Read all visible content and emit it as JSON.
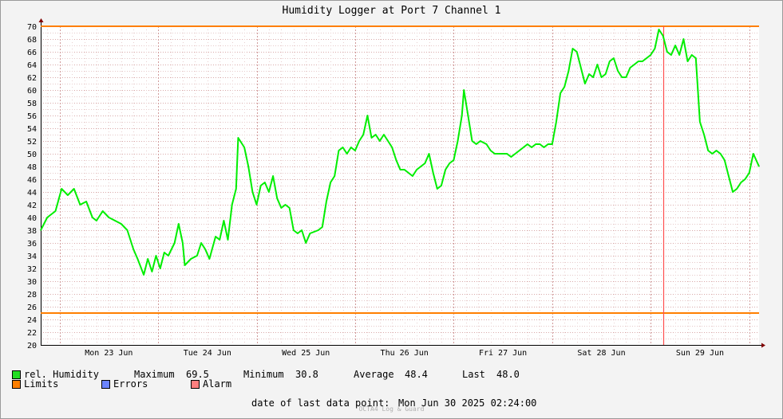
{
  "chart_data": {
    "type": "line",
    "title": "Humidity Logger at Port 7 Channel 1",
    "ylim": [
      20,
      70
    ],
    "y_ticks": [
      20,
      22,
      24,
      26,
      28,
      30,
      32,
      34,
      36,
      38,
      40,
      42,
      44,
      46,
      48,
      50,
      52,
      54,
      56,
      58,
      60,
      62,
      64,
      66,
      68,
      70
    ],
    "x_range": [
      "2025-06-22 19:24",
      "2025-06-30 02:24"
    ],
    "x_labels": [
      {
        "label": "Mon 23 Jun",
        "center": "2025-06-23 12:00"
      },
      {
        "label": "Tue 24 Jun",
        "center": "2025-06-24 12:00"
      },
      {
        "label": "Wed 25 Jun",
        "center": "2025-06-25 12:00"
      },
      {
        "label": "Thu 26 Jun",
        "center": "2025-06-26 12:00"
      },
      {
        "label": "Fri 27 Jun",
        "center": "2025-06-27 12:00"
      },
      {
        "label": "Sat 28 Jun",
        "center": "2025-06-28 12:00"
      },
      {
        "label": "Sun 29 Jun",
        "center": "2025-06-29 12:00"
      }
    ],
    "limits": {
      "upper": 70,
      "lower": 25
    },
    "max_marker_time": "2025-06-29 03:00",
    "series": [
      {
        "name": "rel. Humidity",
        "color": "#00ee00",
        "points": [
          [
            "2025-06-22 19:24",
            38.0
          ],
          [
            "2025-06-22 21:00",
            40.0
          ],
          [
            "2025-06-22 23:00",
            41.0
          ],
          [
            "2025-06-23 00:30",
            44.5
          ],
          [
            "2025-06-23 02:00",
            43.5
          ],
          [
            "2025-06-23 03:30",
            44.5
          ],
          [
            "2025-06-23 05:00",
            42.0
          ],
          [
            "2025-06-23 06:30",
            42.5
          ],
          [
            "2025-06-23 08:00",
            40.0
          ],
          [
            "2025-06-23 09:00",
            39.5
          ],
          [
            "2025-06-23 10:30",
            41.0
          ],
          [
            "2025-06-23 12:00",
            40.0
          ],
          [
            "2025-06-23 13:30",
            39.5
          ],
          [
            "2025-06-23 15:00",
            39.0
          ],
          [
            "2025-06-23 16:30",
            38.0
          ],
          [
            "2025-06-23 18:00",
            35.0
          ],
          [
            "2025-06-23 19:00",
            33.5
          ],
          [
            "2025-06-23 20:30",
            31.0
          ],
          [
            "2025-06-23 21:30",
            33.5
          ],
          [
            "2025-06-23 22:30",
            31.5
          ],
          [
            "2025-06-23 23:30",
            34.0
          ],
          [
            "2025-06-24 00:30",
            32.0
          ],
          [
            "2025-06-24 01:30",
            34.5
          ],
          [
            "2025-06-24 02:30",
            34.0
          ],
          [
            "2025-06-24 04:00",
            36.0
          ],
          [
            "2025-06-24 05:00",
            39.0
          ],
          [
            "2025-06-24 06:00",
            36.0
          ],
          [
            "2025-06-24 06:30",
            32.5
          ],
          [
            "2025-06-24 08:00",
            33.5
          ],
          [
            "2025-06-24 09:30",
            34.0
          ],
          [
            "2025-06-24 10:30",
            36.0
          ],
          [
            "2025-06-24 11:30",
            35.0
          ],
          [
            "2025-06-24 12:30",
            33.5
          ],
          [
            "2025-06-24 14:00",
            37.0
          ],
          [
            "2025-06-24 15:00",
            36.5
          ],
          [
            "2025-06-24 16:00",
            39.5
          ],
          [
            "2025-06-24 17:00",
            36.5
          ],
          [
            "2025-06-24 18:00",
            42.0
          ],
          [
            "2025-06-24 19:00",
            44.5
          ],
          [
            "2025-06-24 19:30",
            52.5
          ],
          [
            "2025-06-24 21:00",
            51.0
          ],
          [
            "2025-06-24 22:00",
            48.0
          ],
          [
            "2025-06-24 23:00",
            44.0
          ],
          [
            "2025-06-25 00:00",
            42.0
          ],
          [
            "2025-06-25 01:00",
            45.0
          ],
          [
            "2025-06-25 02:00",
            45.5
          ],
          [
            "2025-06-25 03:00",
            44.0
          ],
          [
            "2025-06-25 04:00",
            46.5
          ],
          [
            "2025-06-25 05:00",
            43.0
          ],
          [
            "2025-06-25 06:00",
            41.5
          ],
          [
            "2025-06-25 07:00",
            42.0
          ],
          [
            "2025-06-25 08:00",
            41.5
          ],
          [
            "2025-06-25 09:00",
            38.0
          ],
          [
            "2025-06-25 10:00",
            37.5
          ],
          [
            "2025-06-25 11:00",
            38.0
          ],
          [
            "2025-06-25 12:00",
            36.0
          ],
          [
            "2025-06-25 13:00",
            37.5
          ],
          [
            "2025-06-25 15:00",
            38.0
          ],
          [
            "2025-06-25 16:00",
            38.5
          ],
          [
            "2025-06-25 17:00",
            42.5
          ],
          [
            "2025-06-25 18:00",
            45.5
          ],
          [
            "2025-06-25 19:00",
            46.5
          ],
          [
            "2025-06-25 20:00",
            50.5
          ],
          [
            "2025-06-25 21:00",
            51.0
          ],
          [
            "2025-06-25 22:00",
            50.0
          ],
          [
            "2025-06-25 23:00",
            51.0
          ],
          [
            "2025-06-26 00:00",
            50.5
          ],
          [
            "2025-06-26 01:00",
            52.0
          ],
          [
            "2025-06-26 02:00",
            53.0
          ],
          [
            "2025-06-26 03:00",
            56.0
          ],
          [
            "2025-06-26 04:00",
            52.5
          ],
          [
            "2025-06-26 05:00",
            53.0
          ],
          [
            "2025-06-26 06:00",
            52.0
          ],
          [
            "2025-06-26 07:00",
            53.0
          ],
          [
            "2025-06-26 08:00",
            52.0
          ],
          [
            "2025-06-26 09:00",
            51.0
          ],
          [
            "2025-06-26 10:00",
            49.0
          ],
          [
            "2025-06-26 11:00",
            47.5
          ],
          [
            "2025-06-26 12:00",
            47.5
          ],
          [
            "2025-06-26 13:00",
            47.0
          ],
          [
            "2025-06-26 14:00",
            46.5
          ],
          [
            "2025-06-26 15:00",
            47.5
          ],
          [
            "2025-06-26 16:00",
            48.0
          ],
          [
            "2025-06-26 17:00",
            48.5
          ],
          [
            "2025-06-26 18:00",
            50.0
          ],
          [
            "2025-06-26 19:00",
            47.0
          ],
          [
            "2025-06-26 20:00",
            44.5
          ],
          [
            "2025-06-26 21:00",
            45.0
          ],
          [
            "2025-06-26 22:00",
            47.5
          ],
          [
            "2025-06-26 23:00",
            48.5
          ],
          [
            "2025-06-27 00:00",
            49.0
          ],
          [
            "2025-06-27 01:00",
            52.0
          ],
          [
            "2025-06-27 02:00",
            56.0
          ],
          [
            "2025-06-27 02:30",
            60.0
          ],
          [
            "2025-06-27 03:30",
            56.0
          ],
          [
            "2025-06-27 04:30",
            52.0
          ],
          [
            "2025-06-27 05:30",
            51.5
          ],
          [
            "2025-06-27 06:30",
            52.0
          ],
          [
            "2025-06-27 08:00",
            51.5
          ],
          [
            "2025-06-27 09:00",
            50.5
          ],
          [
            "2025-06-27 10:00",
            50.0
          ],
          [
            "2025-06-27 12:00",
            50.0
          ],
          [
            "2025-06-27 13:00",
            50.0
          ],
          [
            "2025-06-27 14:00",
            49.5
          ],
          [
            "2025-06-27 15:00",
            50.0
          ],
          [
            "2025-06-27 16:00",
            50.5
          ],
          [
            "2025-06-27 17:00",
            51.0
          ],
          [
            "2025-06-27 18:00",
            51.5
          ],
          [
            "2025-06-27 19:00",
            51.0
          ],
          [
            "2025-06-27 20:00",
            51.5
          ],
          [
            "2025-06-27 21:00",
            51.5
          ],
          [
            "2025-06-27 22:00",
            51.0
          ],
          [
            "2025-06-27 23:00",
            51.5
          ],
          [
            "2025-06-28 00:00",
            51.5
          ],
          [
            "2025-06-28 01:00",
            55.0
          ],
          [
            "2025-06-28 02:00",
            59.5
          ],
          [
            "2025-06-28 03:00",
            60.5
          ],
          [
            "2025-06-28 04:00",
            63.0
          ],
          [
            "2025-06-28 05:00",
            66.5
          ],
          [
            "2025-06-28 06:00",
            66.0
          ],
          [
            "2025-06-28 07:00",
            63.5
          ],
          [
            "2025-06-28 08:00",
            61.0
          ],
          [
            "2025-06-28 09:00",
            62.5
          ],
          [
            "2025-06-28 10:00",
            62.0
          ],
          [
            "2025-06-28 11:00",
            64.0
          ],
          [
            "2025-06-28 12:00",
            62.0
          ],
          [
            "2025-06-28 13:00",
            62.5
          ],
          [
            "2025-06-28 14:00",
            64.5
          ],
          [
            "2025-06-28 15:00",
            65.0
          ],
          [
            "2025-06-28 16:00",
            63.0
          ],
          [
            "2025-06-28 17:00",
            62.0
          ],
          [
            "2025-06-28 18:00",
            62.0
          ],
          [
            "2025-06-28 19:00",
            63.5
          ],
          [
            "2025-06-28 20:00",
            64.0
          ],
          [
            "2025-06-28 21:00",
            64.5
          ],
          [
            "2025-06-28 22:00",
            64.5
          ],
          [
            "2025-06-28 23:00",
            65.0
          ],
          [
            "2025-06-29 00:00",
            65.5
          ],
          [
            "2025-06-29 01:00",
            66.5
          ],
          [
            "2025-06-29 02:00",
            69.5
          ],
          [
            "2025-06-29 03:00",
            68.5
          ],
          [
            "2025-06-29 04:00",
            66.0
          ],
          [
            "2025-06-29 05:00",
            65.5
          ],
          [
            "2025-06-29 06:00",
            67.0
          ],
          [
            "2025-06-29 07:00",
            65.5
          ],
          [
            "2025-06-29 08:00",
            68.0
          ],
          [
            "2025-06-29 09:00",
            64.5
          ],
          [
            "2025-06-29 10:00",
            65.5
          ],
          [
            "2025-06-29 11:00",
            65.0
          ],
          [
            "2025-06-29 12:00",
            55.0
          ],
          [
            "2025-06-29 13:00",
            53.0
          ],
          [
            "2025-06-29 14:00",
            50.5
          ],
          [
            "2025-06-29 15:00",
            50.0
          ],
          [
            "2025-06-29 16:00",
            50.5
          ],
          [
            "2025-06-29 17:00",
            50.0
          ],
          [
            "2025-06-29 18:00",
            49.0
          ],
          [
            "2025-06-29 19:00",
            46.5
          ],
          [
            "2025-06-29 20:00",
            44.0
          ],
          [
            "2025-06-29 21:00",
            44.5
          ],
          [
            "2025-06-29 22:00",
            45.5
          ],
          [
            "2025-06-29 23:00",
            46.0
          ],
          [
            "2025-06-30 00:00",
            47.0
          ],
          [
            "2025-06-30 01:00",
            50.0
          ],
          [
            "2025-06-30 02:24",
            48.0
          ]
        ]
      }
    ]
  },
  "legend": {
    "humidity": {
      "label": "rel. Humidity",
      "color": "#22dd22"
    },
    "limits": {
      "label": "Limits",
      "color": "#ff7f00"
    },
    "errors": {
      "label": "Errors",
      "color": "#6b84ff"
    },
    "alarm": {
      "label": "Alarm",
      "color": "#ff7f7f"
    }
  },
  "stats": {
    "maximum": {
      "label": "Maximum",
      "value": "69.5"
    },
    "minimum": {
      "label": "Minimum",
      "value": "30.8"
    },
    "average": {
      "label": "Average",
      "value": "48.4"
    },
    "last": {
      "label": "Last",
      "value": "48.0"
    }
  },
  "footer": {
    "date_label": "date of last data point:",
    "date_value": "Mon Jun 30 2025 02:24:00",
    "credit": "OCTA4 Log & Guard"
  }
}
